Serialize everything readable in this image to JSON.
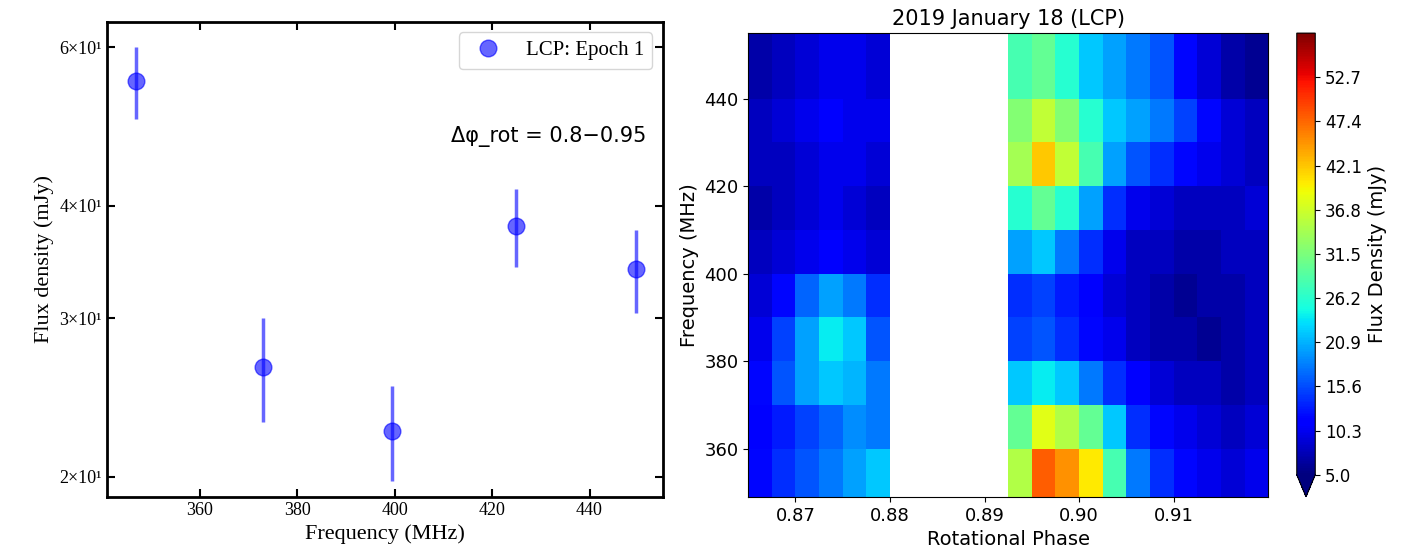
{
  "chart_data": [
    {
      "type": "scatter",
      "x_label": "Frequency (MHz)",
      "y_label": "Flux density (mJy)",
      "annotation": "Δφ_rot = 0.8−0.95",
      "log": "y",
      "legend": "upper right",
      "series": [
        {
          "name": "LCP: Epoch 1",
          "color": "#0000ff",
          "marker": "circle",
          "x": [
            347,
            373,
            399.5,
            425,
            449.5
          ],
          "values": [
            55,
            26.5,
            22.5,
            38,
            34
          ],
          "errors": [
            5,
            3.5,
            2.7,
            3.8,
            3.6
          ]
        }
      ],
      "xlim": [
        341,
        455
      ],
      "xticks": [
        360,
        380,
        400,
        420,
        440
      ],
      "ylim": [
        19,
        64
      ],
      "yticks": [
        {
          "value": 20,
          "label": "2×10¹"
        },
        {
          "value": 30,
          "label": "3×10¹"
        },
        {
          "value": 40,
          "label": "4×10¹"
        },
        {
          "value": 60,
          "label": "6×10¹"
        }
      ]
    },
    {
      "type": "heatmap",
      "title": "2019 January 18 (LCP)",
      "x_label": "Rotational Phase",
      "y_label": "Frequency (MHz)",
      "colorbar_label": "Flux Density (mJy)",
      "x_edges": [
        0.865,
        0.8675,
        0.87,
        0.8725,
        0.875,
        0.8775,
        0.88,
        0.8825,
        0.885,
        0.8875,
        0.89,
        0.8925,
        0.895,
        0.8975,
        0.9,
        0.9025,
        0.905,
        0.9075,
        0.91,
        0.9125,
        0.915,
        0.9175,
        0.92
      ],
      "y_edges": [
        349,
        360,
        370,
        380,
        390,
        400,
        410,
        420,
        430,
        440,
        455
      ],
      "cells": [
        [
          12,
          14,
          16,
          18,
          20,
          22,
          null,
          null,
          null,
          null,
          null,
          35,
          48,
          45,
          40,
          28,
          18,
          14,
          12,
          10,
          9,
          10
        ],
        [
          11,
          13,
          15,
          17,
          19,
          18,
          null,
          null,
          null,
          null,
          null,
          30,
          38,
          35,
          30,
          22,
          14,
          12,
          10,
          9,
          8,
          9
        ],
        [
          12,
          16,
          20,
          22,
          21,
          18,
          null,
          null,
          null,
          null,
          null,
          22,
          24,
          22,
          18,
          14,
          11,
          9,
          8,
          8,
          7,
          8
        ],
        [
          10,
          15,
          20,
          24,
          22,
          16,
          null,
          null,
          null,
          null,
          null,
          15,
          16,
          14,
          12,
          10,
          8,
          7,
          7,
          6,
          7,
          8
        ],
        [
          9,
          12,
          17,
          20,
          18,
          14,
          null,
          null,
          null,
          null,
          null,
          14,
          15,
          13,
          11,
          9,
          8,
          7,
          6,
          7,
          7,
          8
        ],
        [
          8,
          9,
          10,
          11,
          10,
          9,
          null,
          null,
          null,
          null,
          null,
          20,
          22,
          18,
          14,
          10,
          8,
          8,
          7,
          7,
          8,
          8
        ],
        [
          7,
          8,
          9,
          10,
          9,
          8,
          null,
          null,
          null,
          null,
          null,
          26,
          30,
          26,
          20,
          14,
          10,
          9,
          8,
          8,
          8,
          9
        ],
        [
          8,
          8,
          9,
          10,
          10,
          9,
          null,
          null,
          null,
          null,
          null,
          34,
          42,
          36,
          28,
          20,
          16,
          14,
          12,
          10,
          9,
          8
        ],
        [
          8,
          9,
          10,
          11,
          10,
          10,
          null,
          null,
          null,
          null,
          null,
          32,
          36,
          32,
          26,
          22,
          20,
          18,
          15,
          12,
          9,
          8
        ],
        [
          7,
          8,
          9,
          10,
          10,
          9,
          null,
          null,
          null,
          null,
          null,
          28,
          30,
          26,
          22,
          20,
          18,
          16,
          12,
          9,
          7,
          6
        ]
      ],
      "xlim": [
        0.865,
        0.92
      ],
      "xticks": [
        {
          "value": 0.87,
          "label": "0.87"
        },
        {
          "value": 0.88,
          "label": "0.88"
        },
        {
          "value": 0.89,
          "label": "0.89"
        },
        {
          "value": 0.9,
          "label": "0.90"
        },
        {
          "value": 0.91,
          "label": "0.91"
        }
      ],
      "ylim": [
        349,
        455
      ],
      "yticks": [
        360,
        380,
        400,
        420,
        440
      ],
      "colorbar_range": [
        5.0,
        58.0
      ],
      "colorbar_ticks": [
        5.0,
        10.3,
        15.6,
        20.9,
        26.2,
        31.5,
        36.8,
        42.1,
        47.4,
        52.7
      ]
    }
  ]
}
